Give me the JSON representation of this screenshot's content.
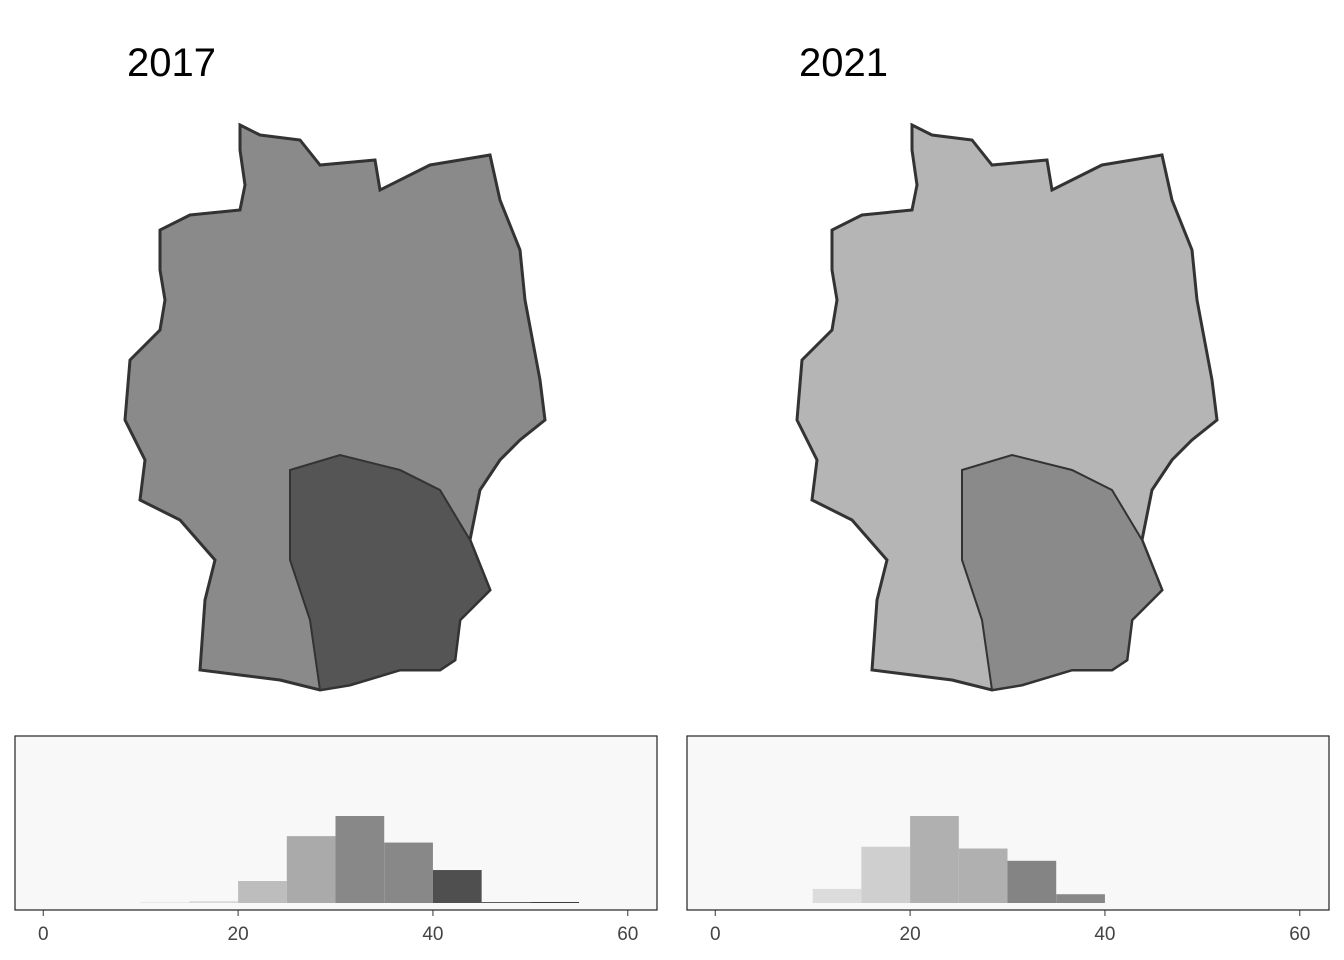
{
  "chart_data": [
    {
      "type": "histogram",
      "title": "2017",
      "bins": [
        10,
        15,
        20,
        25,
        30,
        35,
        40,
        45,
        50,
        55
      ],
      "values": [
        1,
        2,
        24,
        73,
        95,
        66,
        36,
        1,
        1
      ],
      "colors": [
        "#e6e6e6",
        "#d9d9d9",
        "#bdbdbd",
        "#aaaaaa",
        "#888888",
        "#888888",
        "#4f4f4f",
        "#4f4f4f",
        "#2e2e2e"
      ],
      "xlim": [
        -2.9,
        63
      ],
      "xticks": [
        0,
        20,
        40,
        60
      ]
    },
    {
      "type": "histogram",
      "title": "2021",
      "bins": [
        10,
        15,
        20,
        25,
        30,
        35,
        40
      ],
      "values": [
        16,
        64,
        99,
        62,
        48,
        10
      ],
      "colors": [
        "#dcdcdc",
        "#cfcfcf",
        "#b0b0b0",
        "#b0b0b0",
        "#848484",
        "#888888"
      ],
      "xlim": [
        -2.9,
        63
      ],
      "xticks": [
        0,
        20,
        40,
        60
      ]
    }
  ]
}
